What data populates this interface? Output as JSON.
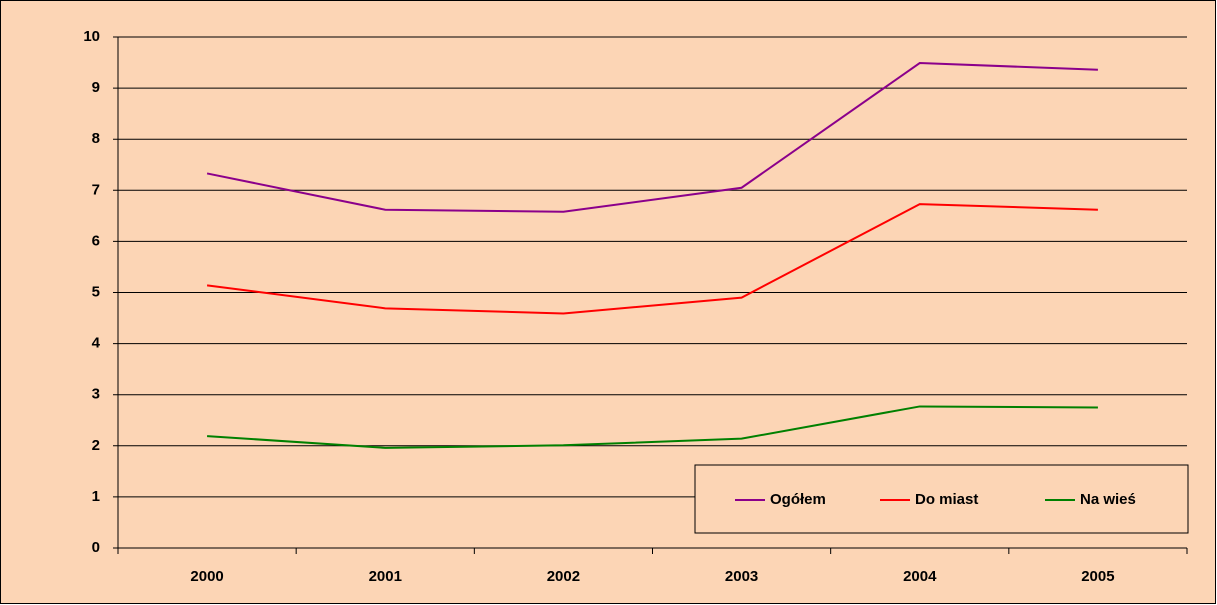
{
  "chart_data": {
    "type": "line",
    "categories": [
      "2000",
      "2001",
      "2002",
      "2003",
      "2004",
      "2005"
    ],
    "series": [
      {
        "name": "Ogółem",
        "color": "#8b008b",
        "values": [
          7.33,
          6.62,
          6.58,
          7.05,
          9.49,
          9.36
        ]
      },
      {
        "name": "Do miast",
        "color": "#ff0000",
        "values": [
          5.14,
          4.69,
          4.59,
          4.9,
          6.73,
          6.62
        ]
      },
      {
        "name": "Na wieś",
        "color": "#008000",
        "values": [
          2.19,
          1.96,
          2.01,
          2.14,
          2.77,
          2.75
        ]
      }
    ],
    "ylim": [
      0,
      10
    ],
    "yticks": [
      0,
      1,
      2,
      3,
      4,
      5,
      6,
      7,
      8,
      9,
      10
    ],
    "grid": true,
    "legend": "bottom-right",
    "background": "#fcd5b5"
  }
}
